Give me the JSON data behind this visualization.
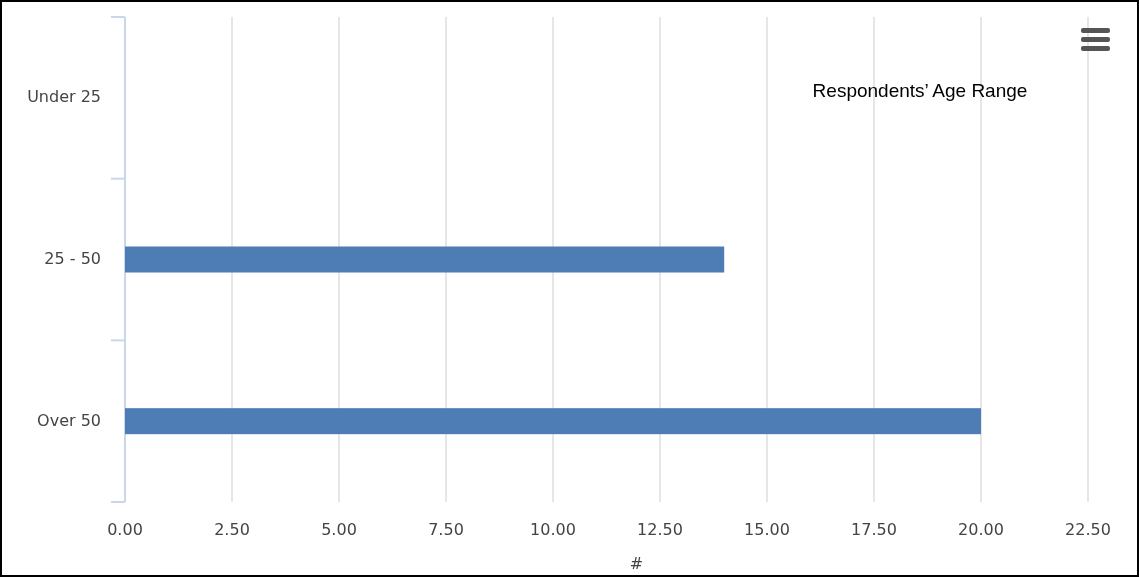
{
  "chart_data": {
    "type": "bar",
    "orientation": "horizontal",
    "title": "Respondents’ Age Range",
    "xlabel": "#",
    "categories": [
      "Under 25",
      "25 - 50",
      "Over 50"
    ],
    "values": [
      0,
      14,
      20
    ],
    "color": "#4e7db5",
    "xlim": [
      0,
      22.5
    ],
    "xticks": [
      {
        "value": 0,
        "label": "0.00"
      },
      {
        "value": 2.5,
        "label": "2.50"
      },
      {
        "value": 5,
        "label": "5.00"
      },
      {
        "value": 7.5,
        "label": "7.50"
      },
      {
        "value": 10,
        "label": "10.00"
      },
      {
        "value": 12.5,
        "label": "12.50"
      },
      {
        "value": 15,
        "label": "15.00"
      },
      {
        "value": 17.5,
        "label": "17.50"
      },
      {
        "value": 20,
        "label": "20.00"
      },
      {
        "value": 22.5,
        "label": "22.50"
      }
    ],
    "grid": "x"
  }
}
